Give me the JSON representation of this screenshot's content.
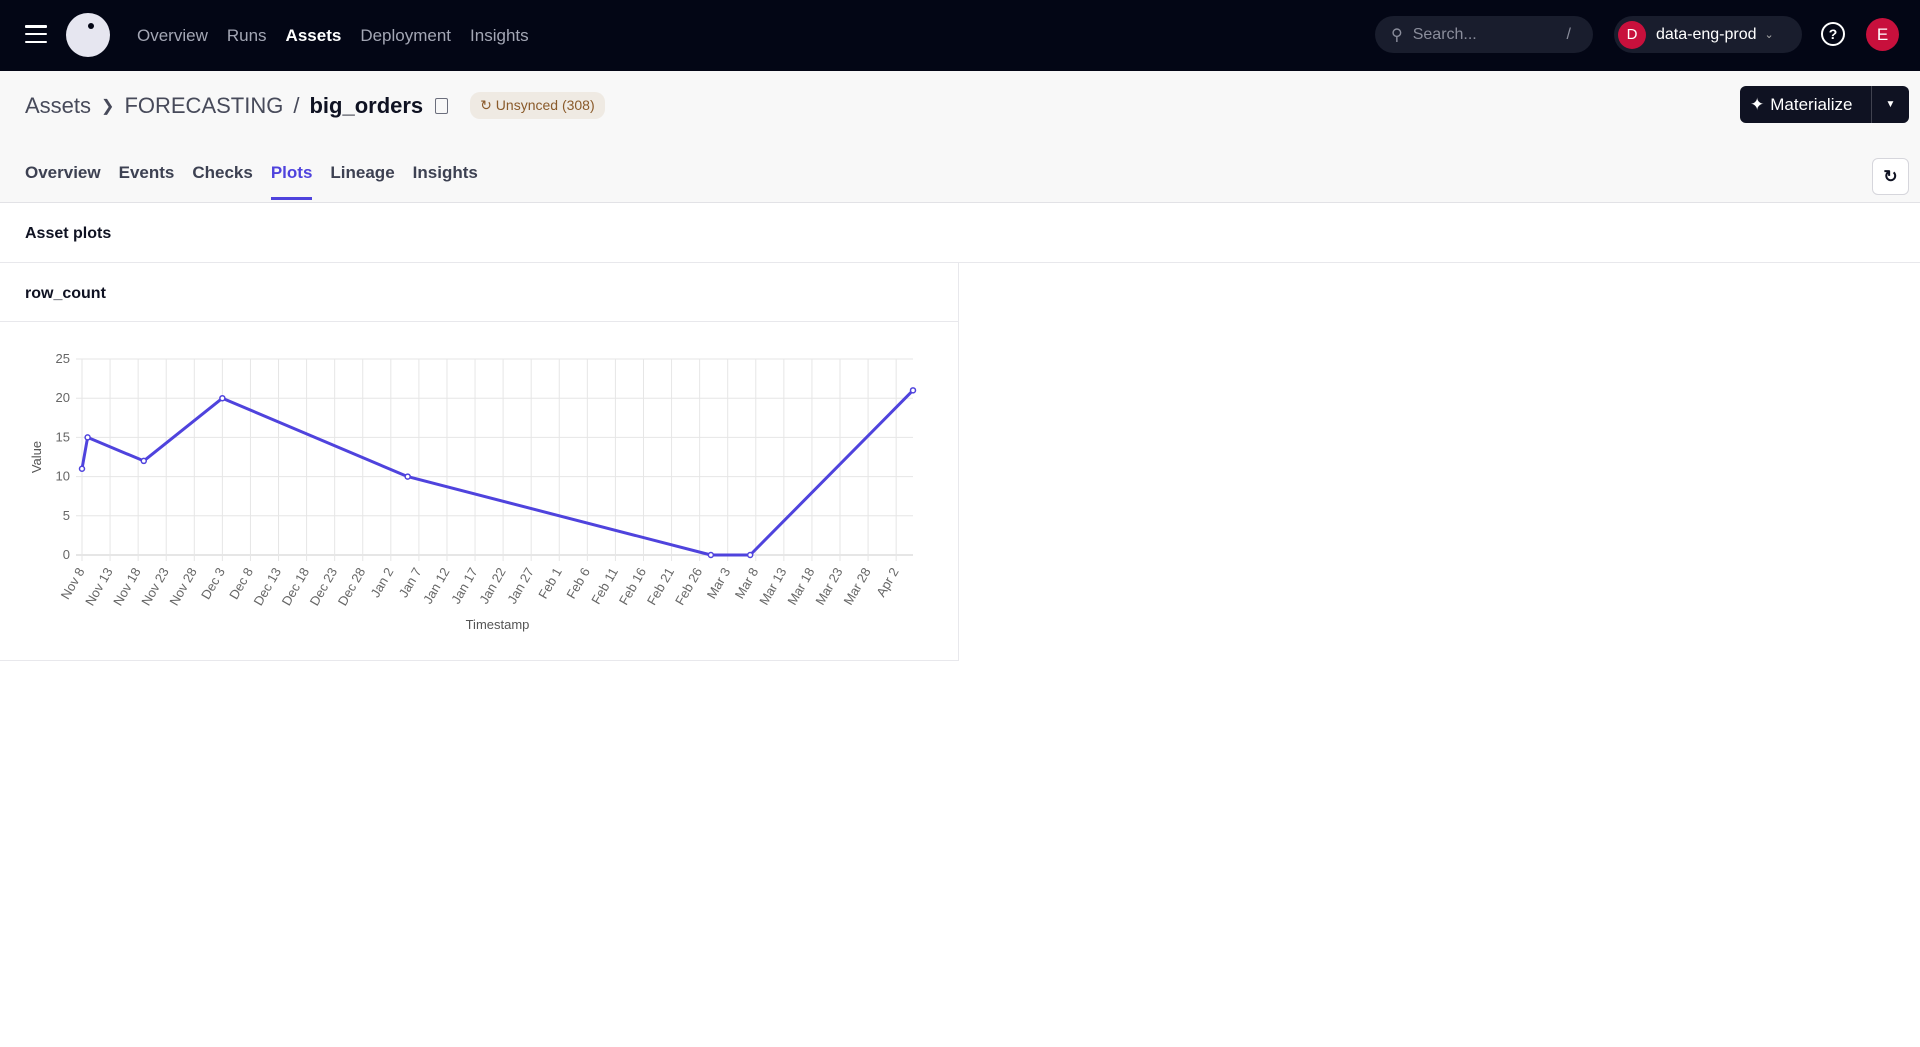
{
  "topbar": {
    "nav": [
      "Overview",
      "Runs",
      "Assets",
      "Deployment",
      "Insights"
    ],
    "active": "Assets",
    "search_placeholder": "Search...",
    "search_shortcut": "/",
    "org_initial": "D",
    "org_name": "data-eng-prod",
    "user_initial": "E"
  },
  "header": {
    "breadcrumb": [
      "Assets",
      "FORECASTING",
      "big_orders"
    ],
    "badge": "Unsynced (308)",
    "materialize": "Materialize",
    "tabs": [
      "Overview",
      "Events",
      "Checks",
      "Plots",
      "Lineage",
      "Insights"
    ],
    "active_tab": "Plots"
  },
  "section_title": "Asset plots",
  "colors": {
    "accent": "#4f43dd",
    "topbar": "#030615",
    "org": "#c8103c"
  },
  "chart_data": {
    "type": "line",
    "title": "row_count",
    "xlabel": "Timestamp",
    "ylabel": "Value",
    "ylim": [
      0,
      25
    ],
    "yticks": [
      0,
      5,
      10,
      15,
      20,
      25
    ],
    "xticks": [
      "Nov 8",
      "Nov 13",
      "Nov 18",
      "Nov 23",
      "Nov 28",
      "Dec 3",
      "Dec 8",
      "Dec 13",
      "Dec 18",
      "Dec 23",
      "Dec 28",
      "Jan 2",
      "Jan 7",
      "Jan 12",
      "Jan 17",
      "Jan 22",
      "Jan 27",
      "Feb 1",
      "Feb 6",
      "Feb 11",
      "Feb 16",
      "Feb 21",
      "Feb 26",
      "Mar 3",
      "Mar 8",
      "Mar 13",
      "Mar 18",
      "Mar 23",
      "Mar 28",
      "Apr 2"
    ],
    "x": [
      "Nov 8",
      "Nov 9",
      "Nov 19",
      "Dec 3",
      "Jan 5",
      "Feb 28",
      "Mar 7",
      "Apr 5"
    ],
    "y": [
      11,
      15,
      12,
      20,
      10,
      0,
      0,
      21
    ],
    "grid": true,
    "color": "#4f43dd"
  }
}
